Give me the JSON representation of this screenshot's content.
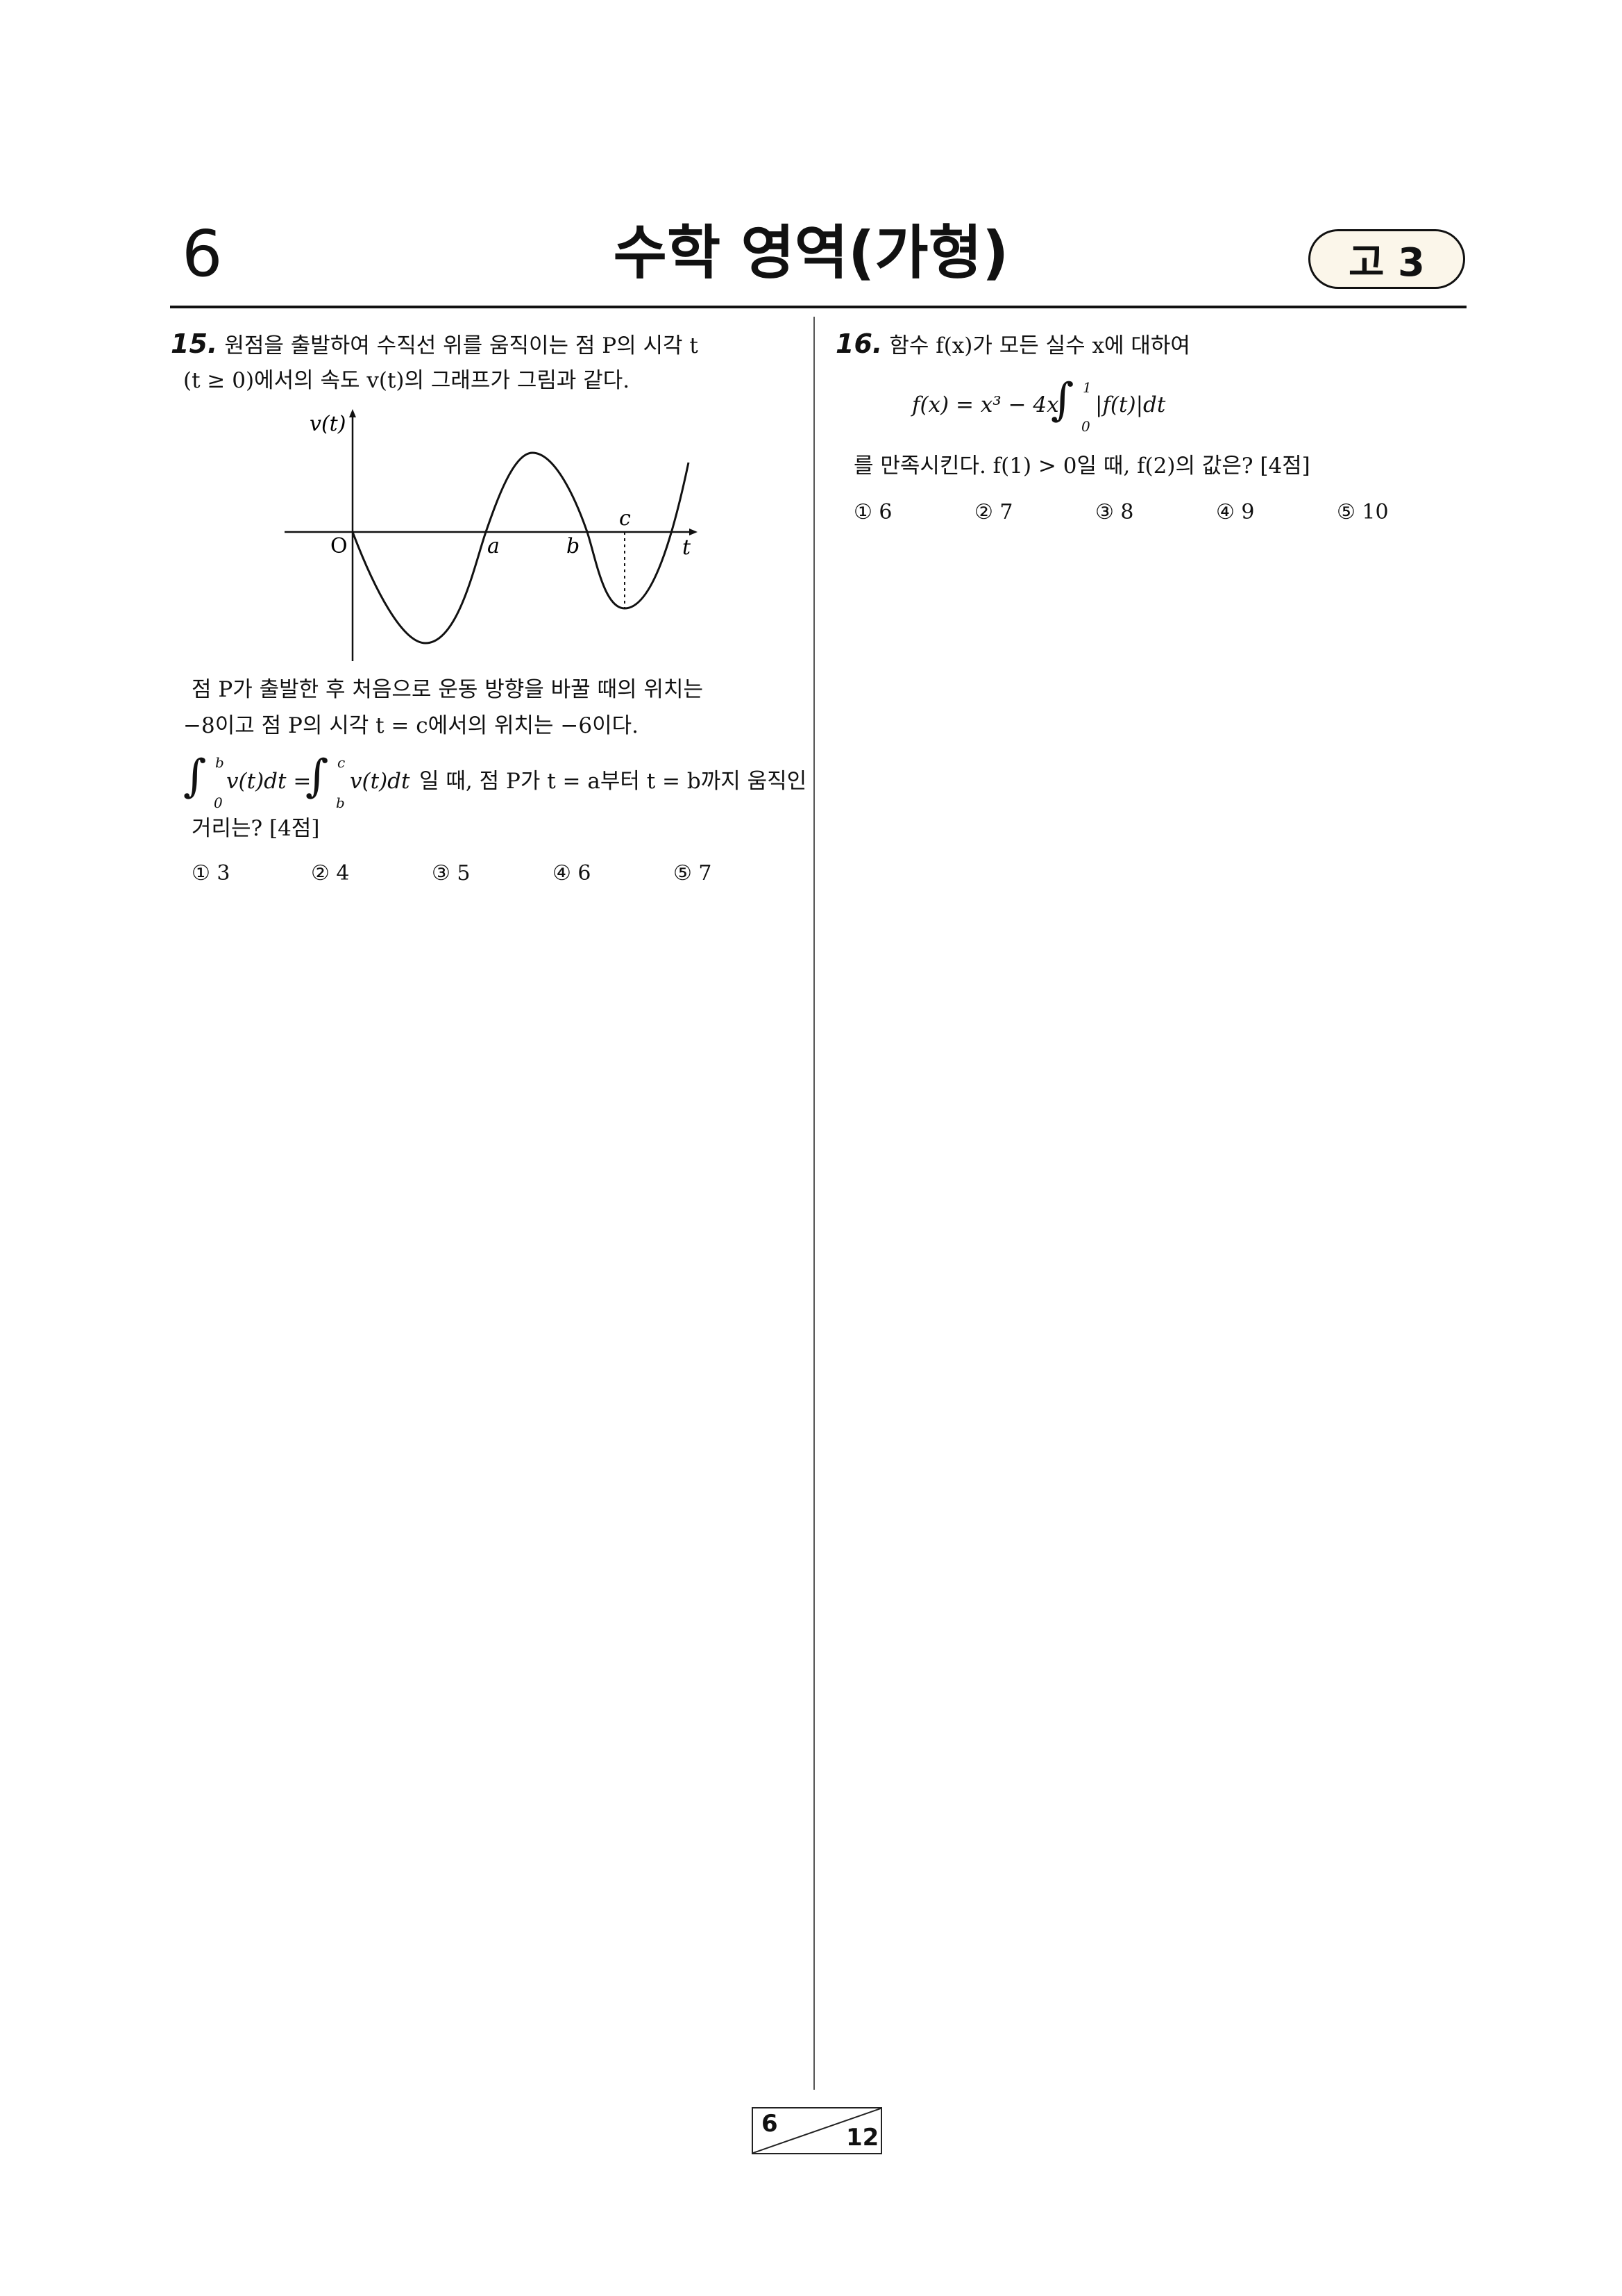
{
  "header": {
    "page_number": "6",
    "title": "수학 영역(가형)",
    "grade": "고 3"
  },
  "q15": {
    "number": "15.",
    "line1": "원점을 출발하여 수직선 위를 움직이는 점 P의 시각 t",
    "line2": "(t ≥ 0)에서의 속도 v(t)의 그래프가 그림과 같다.",
    "graph": {
      "ylabel": "v(t)",
      "xlabel": "t",
      "origin": "O",
      "label_a": "a",
      "label_b": "b",
      "label_c": "c"
    },
    "line3": "점 P가 출발한 후 처음으로 운동 방향을 바꿀 때의 위치는",
    "line4": "−8이고 점 P의 시각 t = c에서의 위치는 −6이다.",
    "int1_upper": "b",
    "int1_lower": "0",
    "int1_body": "v(t)dt =",
    "int2_upper": "c",
    "int2_lower": "b",
    "int2_body": "v(t)dt",
    "line5_tail": "일 때, 점 P가 t = a부터 t = b까지 움직인",
    "line6": "거리는? [4점]",
    "choices": [
      "① 3",
      "② 4",
      "③ 5",
      "④ 6",
      "⑤ 7"
    ]
  },
  "q16": {
    "number": "16.",
    "line1": "함수 f(x)가 모든 실수 x에 대하여",
    "eq_left": "f(x) = x³ − 4x",
    "int_upper": "1",
    "int_lower": "0",
    "eq_right": "|f(t)|dt",
    "line2": "를 만족시킨다. f(1) > 0일 때, f(2)의 값은? [4점]",
    "choices": [
      "① 6",
      "② 7",
      "③ 8",
      "④ 9",
      "⑤ 10"
    ]
  },
  "footer": {
    "current_page": "6",
    "total_pages": "12"
  }
}
